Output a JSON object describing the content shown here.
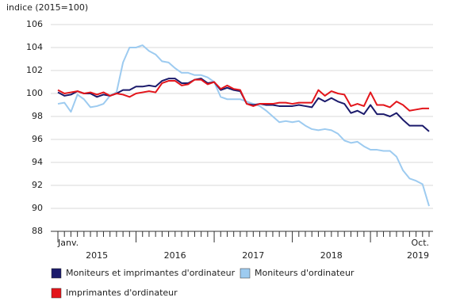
{
  "chart_data": {
    "type": "line",
    "y_axis_label": "indice (2015=100)",
    "categories": [
      "Janv.",
      null,
      null,
      null,
      null,
      null,
      null,
      null,
      null,
      null,
      null,
      null,
      null,
      null,
      null,
      null,
      null,
      null,
      null,
      null,
      null,
      null,
      null,
      null,
      null,
      null,
      null,
      null,
      null,
      null,
      null,
      null,
      null,
      null,
      null,
      null,
      null,
      null,
      null,
      null,
      null,
      null,
      null,
      null,
      null,
      null,
      null,
      null,
      null,
      null,
      null,
      null,
      null,
      null,
      null,
      null,
      null,
      "Oct."
    ],
    "year_labels": [
      "2015",
      "2016",
      "2017",
      "2018",
      "2019"
    ],
    "series": [
      {
        "name": "Moniteurs et imprimantes d'ordinateur",
        "color": "#1b1a6b",
        "values": [
          100.1,
          99.8,
          99.9,
          100.2,
          100.0,
          100.0,
          99.7,
          99.9,
          99.8,
          100.0,
          100.3,
          100.3,
          100.6,
          100.6,
          100.7,
          100.6,
          101.1,
          101.3,
          101.3,
          100.9,
          100.9,
          101.2,
          101.3,
          100.9,
          101.0,
          100.3,
          100.5,
          100.3,
          100.2,
          99.1,
          99.0,
          99.1,
          99.0,
          99.0,
          98.9,
          98.9,
          98.9,
          99.0,
          98.9,
          98.8,
          99.6,
          99.3,
          99.6,
          99.3,
          99.1,
          98.3,
          98.5,
          98.2,
          99.0,
          98.2,
          98.2,
          98.0,
          98.3,
          97.7,
          97.2,
          97.2,
          97.2,
          96.7
        ]
      },
      {
        "name": "Moniteurs d'ordinateur",
        "color": "#9dcbf0",
        "values": [
          99.1,
          99.2,
          98.4,
          99.9,
          99.5,
          98.8,
          98.9,
          99.1,
          99.8,
          100.1,
          102.7,
          104.0,
          104.0,
          104.2,
          103.7,
          103.4,
          102.8,
          102.7,
          102.2,
          101.8,
          101.8,
          101.6,
          101.6,
          101.4,
          101.0,
          99.7,
          99.5,
          99.5,
          99.5,
          99.3,
          99.1,
          98.9,
          98.5,
          98.0,
          97.5,
          97.6,
          97.5,
          97.6,
          97.2,
          96.9,
          96.8,
          96.9,
          96.8,
          96.5,
          95.9,
          95.7,
          95.8,
          95.4,
          95.1,
          95.1,
          95.0,
          95.0,
          94.5,
          93.3,
          92.6,
          92.4,
          92.1,
          90.2
        ]
      },
      {
        "name": "Imprimantes d'ordinateur",
        "color": "#e3151b",
        "values": [
          100.3,
          100.0,
          100.1,
          100.2,
          100.0,
          100.1,
          99.9,
          100.1,
          99.8,
          100.0,
          99.9,
          99.7,
          100.0,
          100.1,
          100.2,
          100.1,
          100.9,
          101.1,
          101.1,
          100.7,
          100.8,
          101.2,
          101.2,
          100.8,
          101.0,
          100.4,
          100.7,
          100.4,
          100.3,
          99.1,
          98.9,
          99.1,
          99.1,
          99.1,
          99.2,
          99.2,
          99.1,
          99.2,
          99.2,
          99.2,
          100.3,
          99.8,
          100.2,
          100.0,
          99.9,
          98.9,
          99.1,
          98.9,
          100.1,
          99.0,
          99.0,
          98.8,
          99.3,
          99.0,
          98.5,
          98.6,
          98.7,
          98.7
        ]
      }
    ],
    "ylim": [
      88,
      106
    ],
    "yticks": [
      88,
      90,
      92,
      94,
      96,
      98,
      100,
      102,
      104,
      106
    ],
    "grid": true
  }
}
